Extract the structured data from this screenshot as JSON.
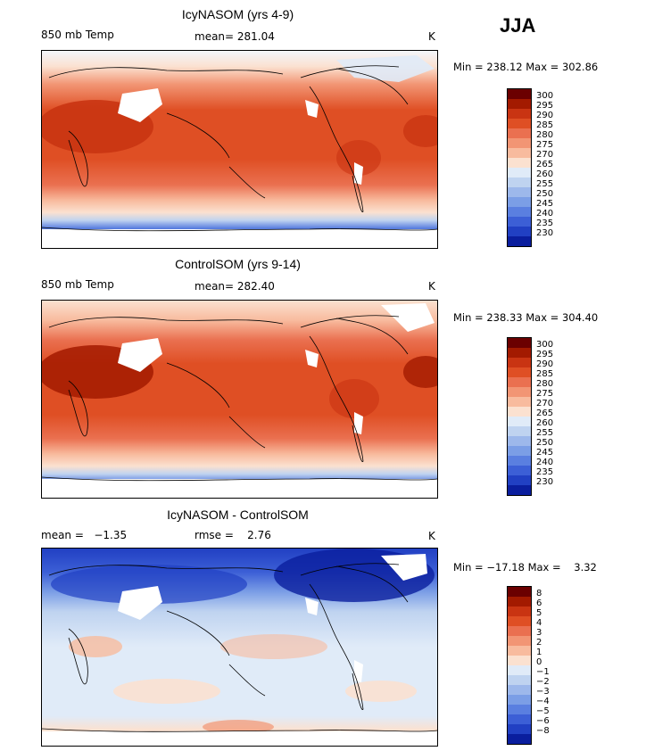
{
  "season": "JJA",
  "chart_data": [
    {
      "type": "heatmap",
      "title": "IcyNASOM (yrs 4-9)",
      "variable": "850 mb Temp",
      "units": "K",
      "stat_text": "mean= 281.04",
      "mean": 281.04,
      "min": 238.12,
      "max": 302.86,
      "minmax_text": "Min = 238.12 Max = 302.86",
      "levels": [
        230,
        235,
        240,
        245,
        250,
        255,
        260,
        265,
        270,
        275,
        280,
        285,
        290,
        295,
        300
      ],
      "level_labels": [
        "300",
        "295",
        "290",
        "285",
        "280",
        "275",
        "270",
        "265",
        "260",
        "255",
        "250",
        "245",
        "240",
        "235",
        "230"
      ]
    },
    {
      "type": "heatmap",
      "title": "ControlSOM (yrs 9-14)",
      "variable": "850 mb Temp",
      "units": "K",
      "stat_text": "mean= 282.40",
      "mean": 282.4,
      "min": 238.33,
      "max": 304.4,
      "minmax_text": "Min = 238.33 Max = 304.40",
      "levels": [
        230,
        235,
        240,
        245,
        250,
        255,
        260,
        265,
        270,
        275,
        280,
        285,
        290,
        295,
        300
      ],
      "level_labels": [
        "300",
        "295",
        "290",
        "285",
        "280",
        "275",
        "270",
        "265",
        "260",
        "255",
        "250",
        "245",
        "240",
        "235",
        "230"
      ]
    },
    {
      "type": "heatmap",
      "title": "IcyNASOM - ControlSOM",
      "units": "K",
      "stat_text_left": "mean =   −1.35",
      "stat_text_mid": "rmse =    2.76",
      "mean": -1.35,
      "rmse": 2.76,
      "min": -17.18,
      "max": 3.32,
      "minmax_text": "Min = −17.18 Max =    3.32",
      "levels": [
        -8,
        -6,
        -5,
        -4,
        -3,
        -2,
        -1,
        0,
        1,
        2,
        3,
        4,
        5,
        6,
        8
      ],
      "level_labels": [
        "8",
        "6",
        "5",
        "4",
        "3",
        "2",
        "1",
        "0",
        "−1",
        "−2",
        "−3",
        "−4",
        "−5",
        "−6",
        "−8"
      ]
    }
  ],
  "colors": {
    "temp_scale": [
      "#6b0000",
      "#a31a00",
      "#c93412",
      "#df4f24",
      "#ea7050",
      "#f29574",
      "#f8bb9e",
      "#fbe1d0",
      "#e0ebf8",
      "#bfd3f0",
      "#9db8eb",
      "#7b9ee6",
      "#5a7fe0",
      "#3c5fd6",
      "#2140c3",
      "#0a1e9e"
    ],
    "diff_scale": [
      "#6b0000",
      "#a31a00",
      "#c93412",
      "#df4f24",
      "#ea7050",
      "#f29574",
      "#f8bb9e",
      "#fbe1d0",
      "#e0ebf8",
      "#bfd3f0",
      "#9db8eb",
      "#7b9ee6",
      "#5a7fe0",
      "#3c5fd6",
      "#2140c3",
      "#0a1e9e"
    ]
  }
}
